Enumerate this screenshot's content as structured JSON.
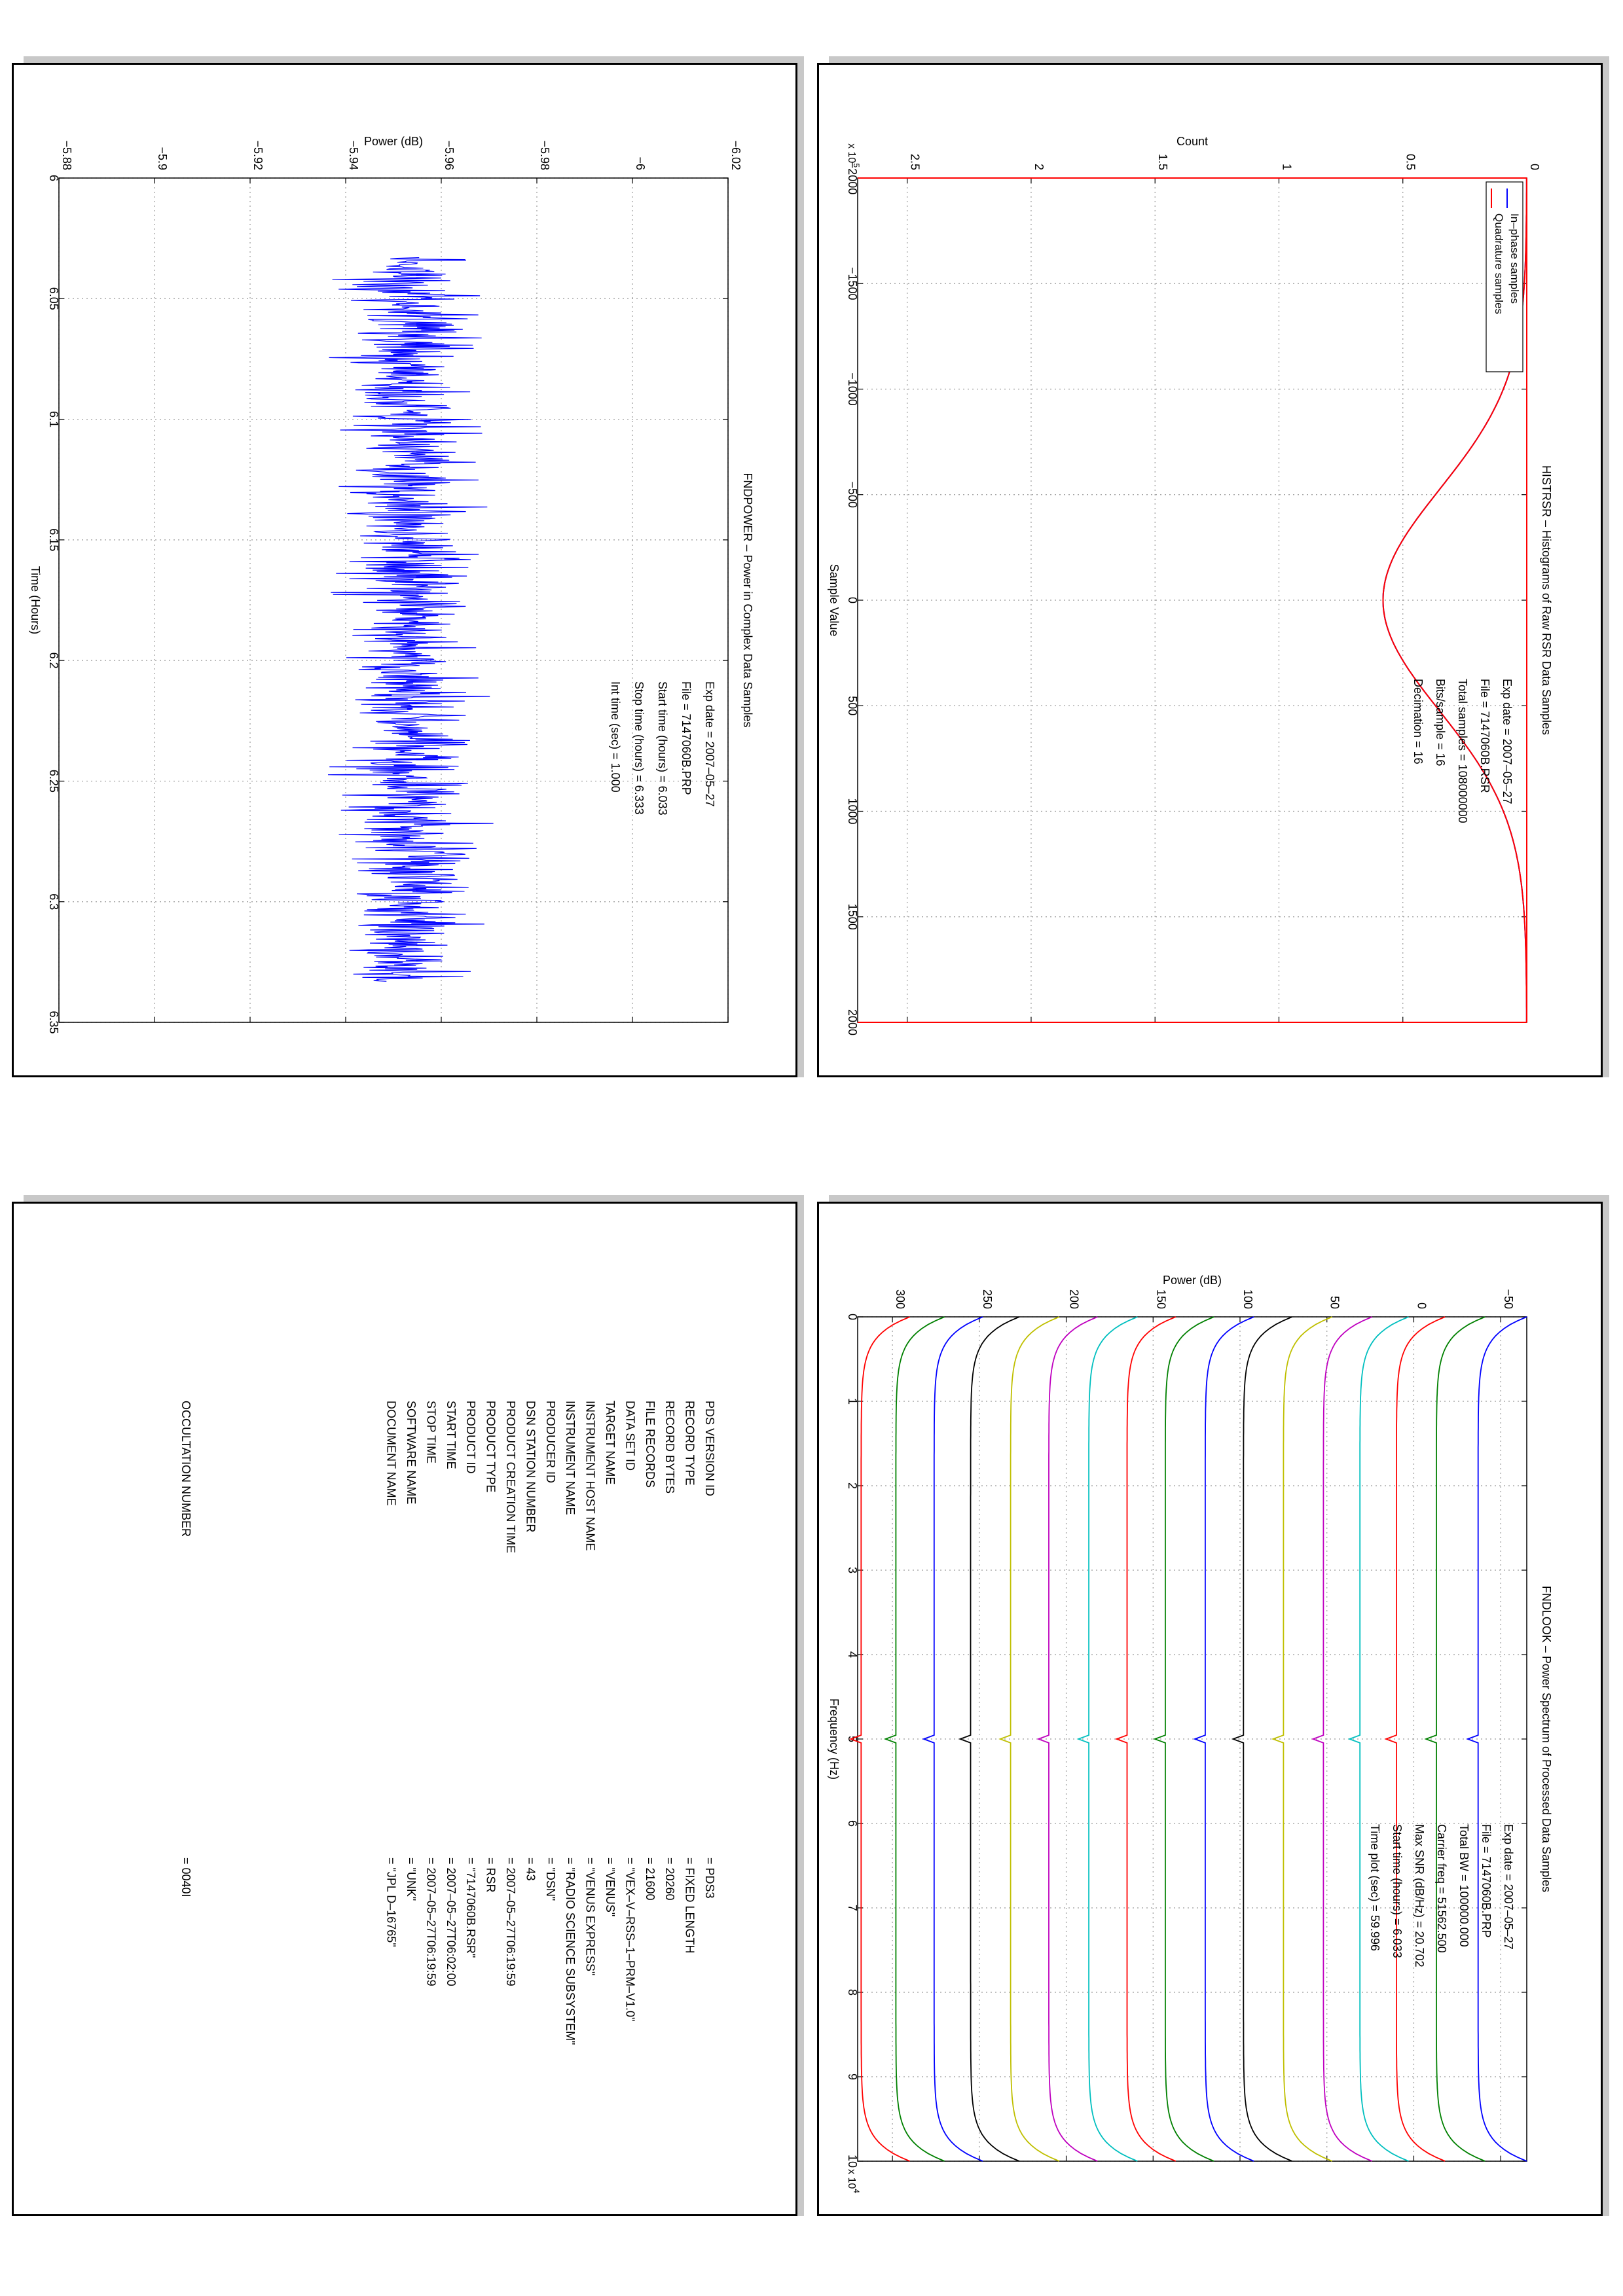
{
  "chart_data": [
    {
      "id": "histrsr",
      "type": "line",
      "title": "HISTRSR – Histograms of Raw RSR Data Samples",
      "xlabel": "Sample Value",
      "ylabel": "Count",
      "y_multiplier": "x 10",
      "y_multiplier_exp": "5",
      "xlim": [
        -2000,
        2000
      ],
      "ylim": [
        0,
        2.7
      ],
      "xticks": [
        -2000,
        -1500,
        -1000,
        -500,
        0,
        500,
        1000,
        1500,
        2000
      ],
      "xtick_labels": [
        "−2000",
        "−1500",
        "−1000",
        "−500",
        "0",
        "500",
        "1000",
        "1500",
        "2000"
      ],
      "yticks": [
        0,
        0.5,
        1,
        1.5,
        2,
        2.5
      ],
      "ytick_labels": [
        "0",
        "0.5",
        "1",
        "1.5",
        "2",
        "2.5"
      ],
      "grid": true,
      "legend": "top-right",
      "gaussian_sigma": 525,
      "series": [
        {
          "name": "In–phase samples",
          "color": "#0000ff",
          "peak": 0.58
        },
        {
          "name": "Quadrature samples",
          "color": "#ff0000",
          "peak": 0.58
        }
      ],
      "annotations": [
        {
          "label": "Exp date = ",
          "value": "2007–05–27"
        },
        {
          "label": "File = ",
          "value": "7147060B.RSR"
        },
        {
          "label": "Total samples = ",
          "value": "108000000"
        },
        {
          "label": "Bits/sample   =   ",
          "value": "16"
        },
        {
          "label": "Decimation    =   ",
          "value": "16"
        }
      ]
    },
    {
      "id": "fndpower",
      "type": "line",
      "title": "FNDPOWER – Power in Complex Data Samples",
      "xlabel": "Time (Hours)",
      "ylabel": "Power (dB)",
      "xlim": [
        6,
        6.35
      ],
      "ylim": [
        -6.02,
        -5.88
      ],
      "xticks": [
        6,
        6.05,
        6.1,
        6.15,
        6.2,
        6.25,
        6.3,
        6.35
      ],
      "xtick_labels": [
        "6",
        "6.05",
        "6.1",
        "6.15",
        "6.2",
        "6.25",
        "6.3",
        "6.35"
      ],
      "yticks": [
        -6.02,
        -6,
        -5.98,
        -5.96,
        -5.94,
        -5.92,
        -5.9,
        -5.88
      ],
      "ytick_labels": [
        "−6.02",
        "−6",
        "−5.98",
        "−5.96",
        "−5.94",
        "−5.92",
        "−5.9",
        "−5.88"
      ],
      "grid": true,
      "series": [
        {
          "color": "#0000ff",
          "x_start": 6.033,
          "x_end": 6.333,
          "mean": -5.953,
          "spread": 0.012
        }
      ],
      "annotations": [
        {
          "label": "Exp date = ",
          "value": "2007–05–27"
        },
        {
          "label": "File = ",
          "value": "7147060B.PRP"
        },
        {
          "label": "Start time (hours) = ",
          "value": "6.033"
        },
        {
          "label": "Stop time (hours) = ",
          "value": "6.333"
        },
        {
          "label": "Int time (sec) = ",
          "value": "1.000"
        }
      ]
    },
    {
      "id": "fndlook",
      "type": "line",
      "title": "FNDLOOK – Power Spectrum of Processed Data Samples",
      "xlabel": "Frequency (Hz)",
      "ylabel": "Power (dB)",
      "x_multiplier": "x 10",
      "x_multiplier_exp": "4",
      "xlim": [
        0,
        10
      ],
      "ylim": [
        -65,
        320
      ],
      "xticks": [
        0,
        1,
        2,
        3,
        4,
        5,
        6,
        7,
        8,
        9,
        10
      ],
      "xtick_labels": [
        "0",
        "1",
        "2",
        "3",
        "4",
        "5",
        "6",
        "7",
        "8",
        "9",
        "10"
      ],
      "yticks": [
        -50,
        0,
        50,
        100,
        150,
        200,
        250,
        300
      ],
      "ytick_labels": [
        "−50",
        "0",
        "50",
        "100",
        "150",
        "200",
        "250",
        "300"
      ],
      "grid": true,
      "series": [
        {
          "color": "#0000ff",
          "level": -37
        },
        {
          "color": "#008000",
          "level": -13
        },
        {
          "color": "#ff0000",
          "level": 10
        },
        {
          "color": "#00bfbf",
          "level": 31
        },
        {
          "color": "#bf00bf",
          "level": 52
        },
        {
          "color": "#bfbf00",
          "level": 75
        },
        {
          "color": "#000000",
          "level": 98
        },
        {
          "color": "#0000ff",
          "level": 120
        },
        {
          "color": "#008000",
          "level": 143
        },
        {
          "color": "#ff0000",
          "level": 165
        },
        {
          "color": "#00bfbf",
          "level": 187
        },
        {
          "color": "#bf00bf",
          "level": 210
        },
        {
          "color": "#bfbf00",
          "level": 232
        },
        {
          "color": "#000000",
          "level": 255
        },
        {
          "color": "#0000ff",
          "level": 276
        },
        {
          "color": "#008000",
          "level": 298
        },
        {
          "color": "#ff0000",
          "level": 318
        }
      ],
      "annotations": [
        {
          "label": "Exp date = ",
          "value": "2007–05–27"
        },
        {
          "label": "File = ",
          "value": "7147060B.PRP"
        },
        {
          "label": "Total BW = ",
          "value": "100000.000"
        },
        {
          "label": "Carrier freq = ",
          "value": "51562.500"
        },
        {
          "label": "Max SNR (dB/Hz) = ",
          "value": "20.702"
        },
        {
          "label": "Start time (hours) = ",
          "value": "6.033"
        },
        {
          "label": "Time plot (sec) = ",
          "value": "59.996"
        }
      ]
    }
  ],
  "label_table": {
    "rows": [
      {
        "key": "PDS VERSION ID",
        "value": "= PDS3"
      },
      {
        "key": "RECORD TYPE",
        "value": "= FIXED LENGTH"
      },
      {
        "key": "RECORD BYTES",
        "value": "= 20260"
      },
      {
        "key": "FILE RECORDS",
        "value": "= 21600"
      },
      {
        "key": "DATA SET ID",
        "value": "= \"VEX–V–RSS–1–PRM–V1.0\""
      },
      {
        "key": "TARGET NAME",
        "value": "= \"VENUS\""
      },
      {
        "key": "INSTRUMENT HOST NAME",
        "value": "= \"VENUS EXPRESS\""
      },
      {
        "key": "INSTRUMENT NAME",
        "value": "= \"RADIO SCIENCE SUBSYSTEM\""
      },
      {
        "key": "PRODUCER ID",
        "value": "= \"DSN\""
      },
      {
        "key": "DSN STATION NUMBER",
        "value": "= 43"
      },
      {
        "key": "PRODUCT CREATION TIME",
        "value": "= 2007–05–27T06:19:59"
      },
      {
        "key": "PRODUCT TYPE",
        "value": "= RSR"
      },
      {
        "key": "PRODUCT ID",
        "value": "= \"7147060B.RSR\""
      },
      {
        "key": "START TIME",
        "value": "= 2007–05–27T06:02:00"
      },
      {
        "key": "STOP TIME",
        "value": "= 2007–05–27T06:19:59"
      },
      {
        "key": "SOFTWARE NAME",
        "value": "= \"UNK\""
      },
      {
        "key": "DOCUMENT NAME",
        "value": "= \"JPL D–16765\""
      }
    ],
    "occultation": {
      "key": "OCCULTATION NUMBER",
      "value": "= 0040I"
    }
  }
}
